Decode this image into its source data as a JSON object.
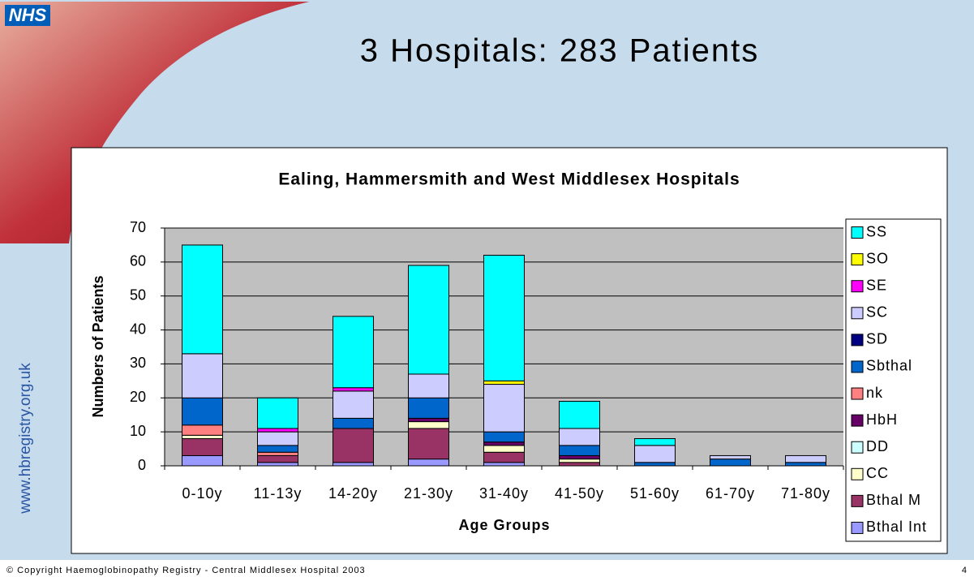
{
  "logo": "NHS",
  "slide_title": "3 Hospitals:  283 Patients",
  "url": "www.hbregistry.org.uk",
  "footer": "© Copyright Haemoglobinopathy Registry - Central Middlesex Hospital 2003",
  "page_number": "4",
  "chart_data": {
    "type": "stacked_bar",
    "title": "Ealing, Hammersmith and West Middlesex Hospitals",
    "xlabel": "Age Groups",
    "ylabel": "Numbers of Patients",
    "categories": [
      "0-10y",
      "11-13y",
      "14-20y",
      "21-30y",
      "31-40y",
      "41-50y",
      "51-60y",
      "61-70y",
      "71-80y"
    ],
    "series": [
      {
        "name": "Bthal Int",
        "color": "#9999ff",
        "values": [
          3,
          1,
          1,
          2,
          1,
          0,
          0,
          0,
          0
        ]
      },
      {
        "name": "Bthal M",
        "color": "#993366",
        "values": [
          5,
          2,
          10,
          9,
          3,
          1,
          0,
          0,
          0
        ]
      },
      {
        "name": "CC",
        "color": "#ffffcc",
        "values": [
          1,
          0,
          0,
          2,
          2,
          1,
          0,
          0,
          0
        ]
      },
      {
        "name": "DD",
        "color": "#ccffff",
        "values": [
          0,
          0,
          0,
          0,
          0,
          0,
          0,
          0,
          0
        ]
      },
      {
        "name": "HbH",
        "color": "#660066",
        "values": [
          0,
          0,
          0,
          1,
          1,
          1,
          0,
          0,
          0
        ]
      },
      {
        "name": "nk",
        "color": "#ff8080",
        "values": [
          3,
          1,
          0,
          0,
          0,
          0,
          0,
          0,
          0
        ]
      },
      {
        "name": "Sbthal",
        "color": "#0066cc",
        "values": [
          8,
          2,
          3,
          6,
          3,
          3,
          1,
          2,
          1
        ]
      },
      {
        "name": "SD",
        "color": "#000080",
        "values": [
          0,
          0,
          0,
          0,
          0,
          0,
          0,
          0,
          0
        ]
      },
      {
        "name": "SC",
        "color": "#ccccff",
        "values": [
          13,
          4,
          8,
          7,
          14,
          5,
          5,
          1,
          2
        ]
      },
      {
        "name": "SE",
        "color": "#ff00ff",
        "values": [
          0,
          1,
          1,
          0,
          0,
          0,
          0,
          0,
          0
        ]
      },
      {
        "name": "SO",
        "color": "#ffff00",
        "values": [
          0,
          0,
          0,
          0,
          1,
          0,
          0,
          0,
          0
        ]
      },
      {
        "name": "SS",
        "color": "#00ffff",
        "values": [
          32,
          9,
          21,
          32,
          37,
          8,
          2,
          0,
          0
        ]
      }
    ],
    "ylim": [
      0,
      70
    ],
    "yticks": [
      0,
      10,
      20,
      30,
      40,
      50,
      60,
      70
    ],
    "grid": true,
    "plot_background": "#c0c0c0",
    "legend_position": "right"
  }
}
